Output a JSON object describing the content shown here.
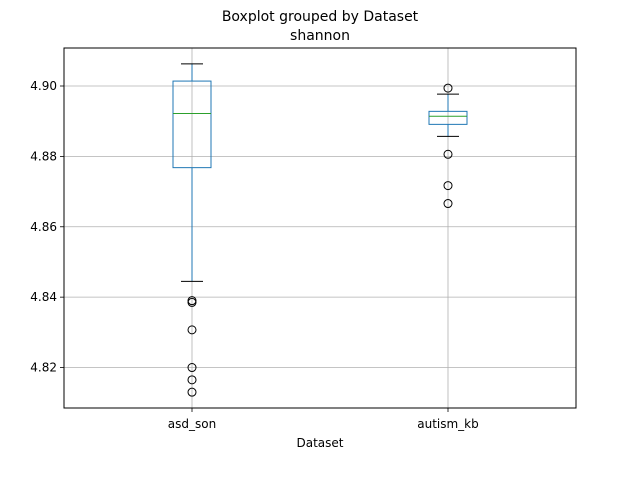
{
  "chart_data": {
    "type": "boxplot",
    "title": "Boxplot grouped by Dataset",
    "subtitle": "shannon",
    "xlabel": "Dataset",
    "ylabel": "",
    "categories": [
      "asd_son",
      "autism_kb"
    ],
    "ylim": [
      4.8085,
      4.9108
    ],
    "yticks": [
      4.82,
      4.84,
      4.86,
      4.88,
      4.9
    ],
    "ytick_labels": [
      "4.82",
      "4.84",
      "4.86",
      "4.88",
      "4.90"
    ],
    "grid": true,
    "boxes": [
      {
        "category": "asd_son",
        "whisker_low": 4.8445,
        "q1": 4.8768,
        "median": 4.8922,
        "q3": 4.9014,
        "whisker_high": 4.9063,
        "outliers": [
          4.839,
          4.8385,
          4.8307,
          4.82,
          4.8165,
          4.813
        ]
      },
      {
        "category": "autism_kb",
        "whisker_low": 4.8857,
        "q1": 4.8891,
        "median": 4.8914,
        "q3": 4.8928,
        "whisker_high": 4.8977,
        "outliers": [
          4.8994,
          4.8806,
          4.8717,
          4.8666
        ]
      }
    ],
    "colors": {
      "box": "#1f77b4",
      "median": "#2ca02c",
      "whisker_cap": "#000000",
      "grid": "#b0b0b0",
      "outlier": "#000000"
    }
  }
}
